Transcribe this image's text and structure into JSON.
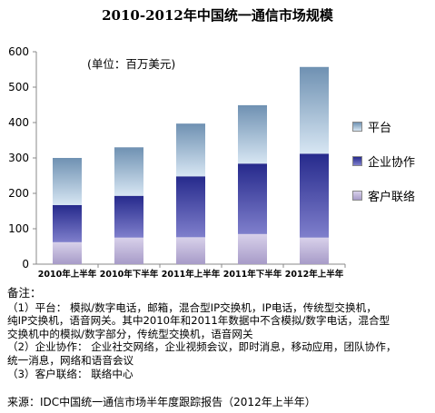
{
  "title": "2010-2012年中国统一通信市场规模",
  "unit": "(单位：百万美元)",
  "chart_data": {
    "type": "bar",
    "stacked": true,
    "categories": [
      "2010年上半年",
      "2010年下半年",
      "2011年上半年",
      "2011年下半年",
      "2012年上半年"
    ],
    "series": [
      {
        "name": "客户联络",
        "values": [
          62,
          75,
          76,
          85,
          75
        ],
        "color": "#c9bfe0"
      },
      {
        "name": "企业协作",
        "values": [
          105,
          118,
          172,
          199,
          237
        ],
        "color": "#2e2f9a"
      },
      {
        "name": "平台",
        "values": [
          133,
          137,
          149,
          165,
          245
        ],
        "color": "#8fb2d3"
      }
    ],
    "ylim": [
      0,
      600
    ],
    "yticks": [
      0,
      100,
      200,
      300,
      400,
      500,
      600
    ],
    "grid": false,
    "legend": "right",
    "legend_order": [
      "平台",
      "企业协作",
      "客户联络"
    ]
  },
  "notes": {
    "label": "备注：",
    "lines": [
      "（1）平台：   模拟/数字电话，邮箱，混合型IP交换机，IP电话，传统型交换机，",
      "纯IP交换机，语音网关。其中2010年和2011年数据中不含模拟/数字电话，混合型",
      "交换机中的模拟/数字部分，传统型交换机，语音网关",
      "（2）企业协作：   企业社交网络，企业视频会议，即时消息，移动应用，团队协作，",
      "统一消息，网络和语音会议",
      "（3）客户联络：   联络中心"
    ]
  },
  "source": "来源：IDC中国统一通信市场半年度跟踪报告（2012年上半年）"
}
